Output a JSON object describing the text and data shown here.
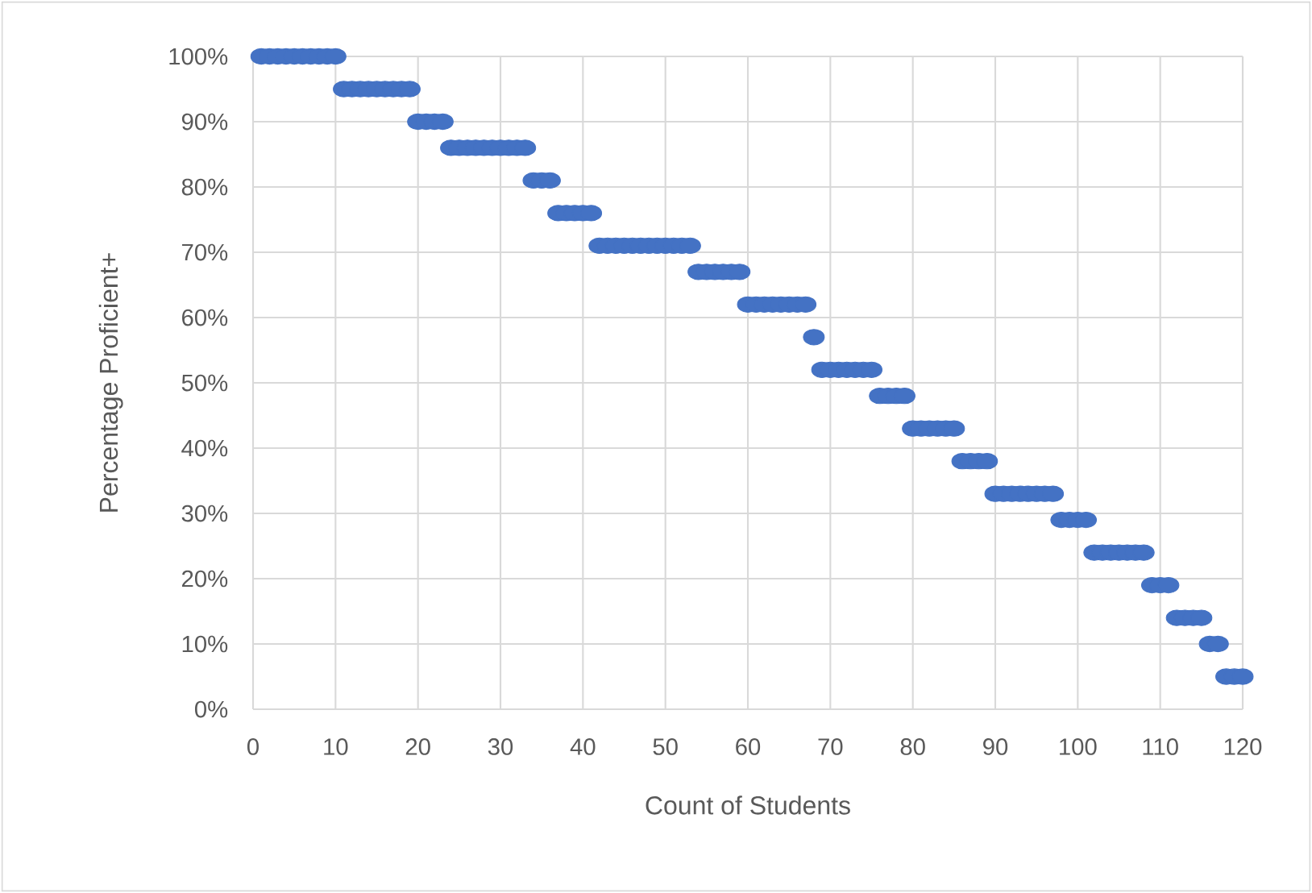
{
  "chart_data": {
    "type": "scatter",
    "xlabel": "Count of Students",
    "ylabel": "Percentage Proficient+",
    "xlim": [
      0,
      120
    ],
    "xticks": [
      0,
      10,
      20,
      30,
      40,
      50,
      60,
      70,
      80,
      90,
      100,
      110,
      120
    ],
    "ylim": [
      0,
      100
    ],
    "yticks": [
      {
        "value": 0,
        "label": "0%"
      },
      {
        "value": 10,
        "label": "10%"
      },
      {
        "value": 20,
        "label": "20%"
      },
      {
        "value": 30,
        "label": "30%"
      },
      {
        "value": 40,
        "label": "40%"
      },
      {
        "value": 50,
        "label": "50%"
      },
      {
        "value": 60,
        "label": "60%"
      },
      {
        "value": 70,
        "label": "70%"
      },
      {
        "value": 80,
        "label": "80%"
      },
      {
        "value": 90,
        "label": "90%"
      },
      {
        "value": 100,
        "label": "100%"
      }
    ],
    "grid": true,
    "marker": "circle",
    "series": [
      {
        "color": "#4472c4",
        "x": [
          1,
          2,
          3,
          4,
          5,
          6,
          7,
          8,
          9,
          10,
          11,
          12,
          13,
          14,
          15,
          16,
          17,
          18,
          19,
          20,
          21,
          22,
          23,
          24,
          25,
          26,
          27,
          28,
          29,
          30,
          31,
          32,
          33,
          34,
          35,
          36,
          37,
          38,
          39,
          40,
          41,
          42,
          43,
          44,
          45,
          46,
          47,
          48,
          49,
          50,
          51,
          52,
          53,
          54,
          55,
          56,
          57,
          58,
          59,
          60,
          61,
          62,
          63,
          64,
          65,
          66,
          67,
          68,
          69,
          70,
          71,
          72,
          73,
          74,
          75,
          76,
          77,
          78,
          79,
          80,
          81,
          82,
          83,
          84,
          85,
          86,
          87,
          88,
          89,
          90,
          91,
          92,
          93,
          94,
          95,
          96,
          97,
          98,
          99,
          100,
          101,
          102,
          103,
          104,
          105,
          106,
          107,
          108,
          109,
          110,
          111,
          112,
          113,
          114,
          115,
          116,
          117,
          118,
          119,
          120
        ],
        "values": [
          100,
          100,
          100,
          100,
          100,
          100,
          100,
          100,
          100,
          100,
          95,
          95,
          95,
          95,
          95,
          95,
          95,
          95,
          95,
          90,
          90,
          90,
          90,
          86,
          86,
          86,
          86,
          86,
          86,
          86,
          86,
          86,
          86,
          81,
          81,
          81,
          76,
          76,
          76,
          76,
          76,
          71,
          71,
          71,
          71,
          71,
          71,
          71,
          71,
          71,
          71,
          71,
          71,
          67,
          67,
          67,
          67,
          67,
          67,
          62,
          62,
          62,
          62,
          62,
          62,
          62,
          62,
          57,
          52,
          52,
          52,
          52,
          52,
          52,
          52,
          48,
          48,
          48,
          48,
          43,
          43,
          43,
          43,
          43,
          43,
          38,
          38,
          38,
          38,
          33,
          33,
          33,
          33,
          33,
          33,
          33,
          33,
          29,
          29,
          29,
          29,
          24,
          24,
          24,
          24,
          24,
          24,
          24,
          19,
          19,
          19,
          14,
          14,
          14,
          14,
          10,
          10,
          5,
          5,
          5
        ]
      }
    ]
  }
}
